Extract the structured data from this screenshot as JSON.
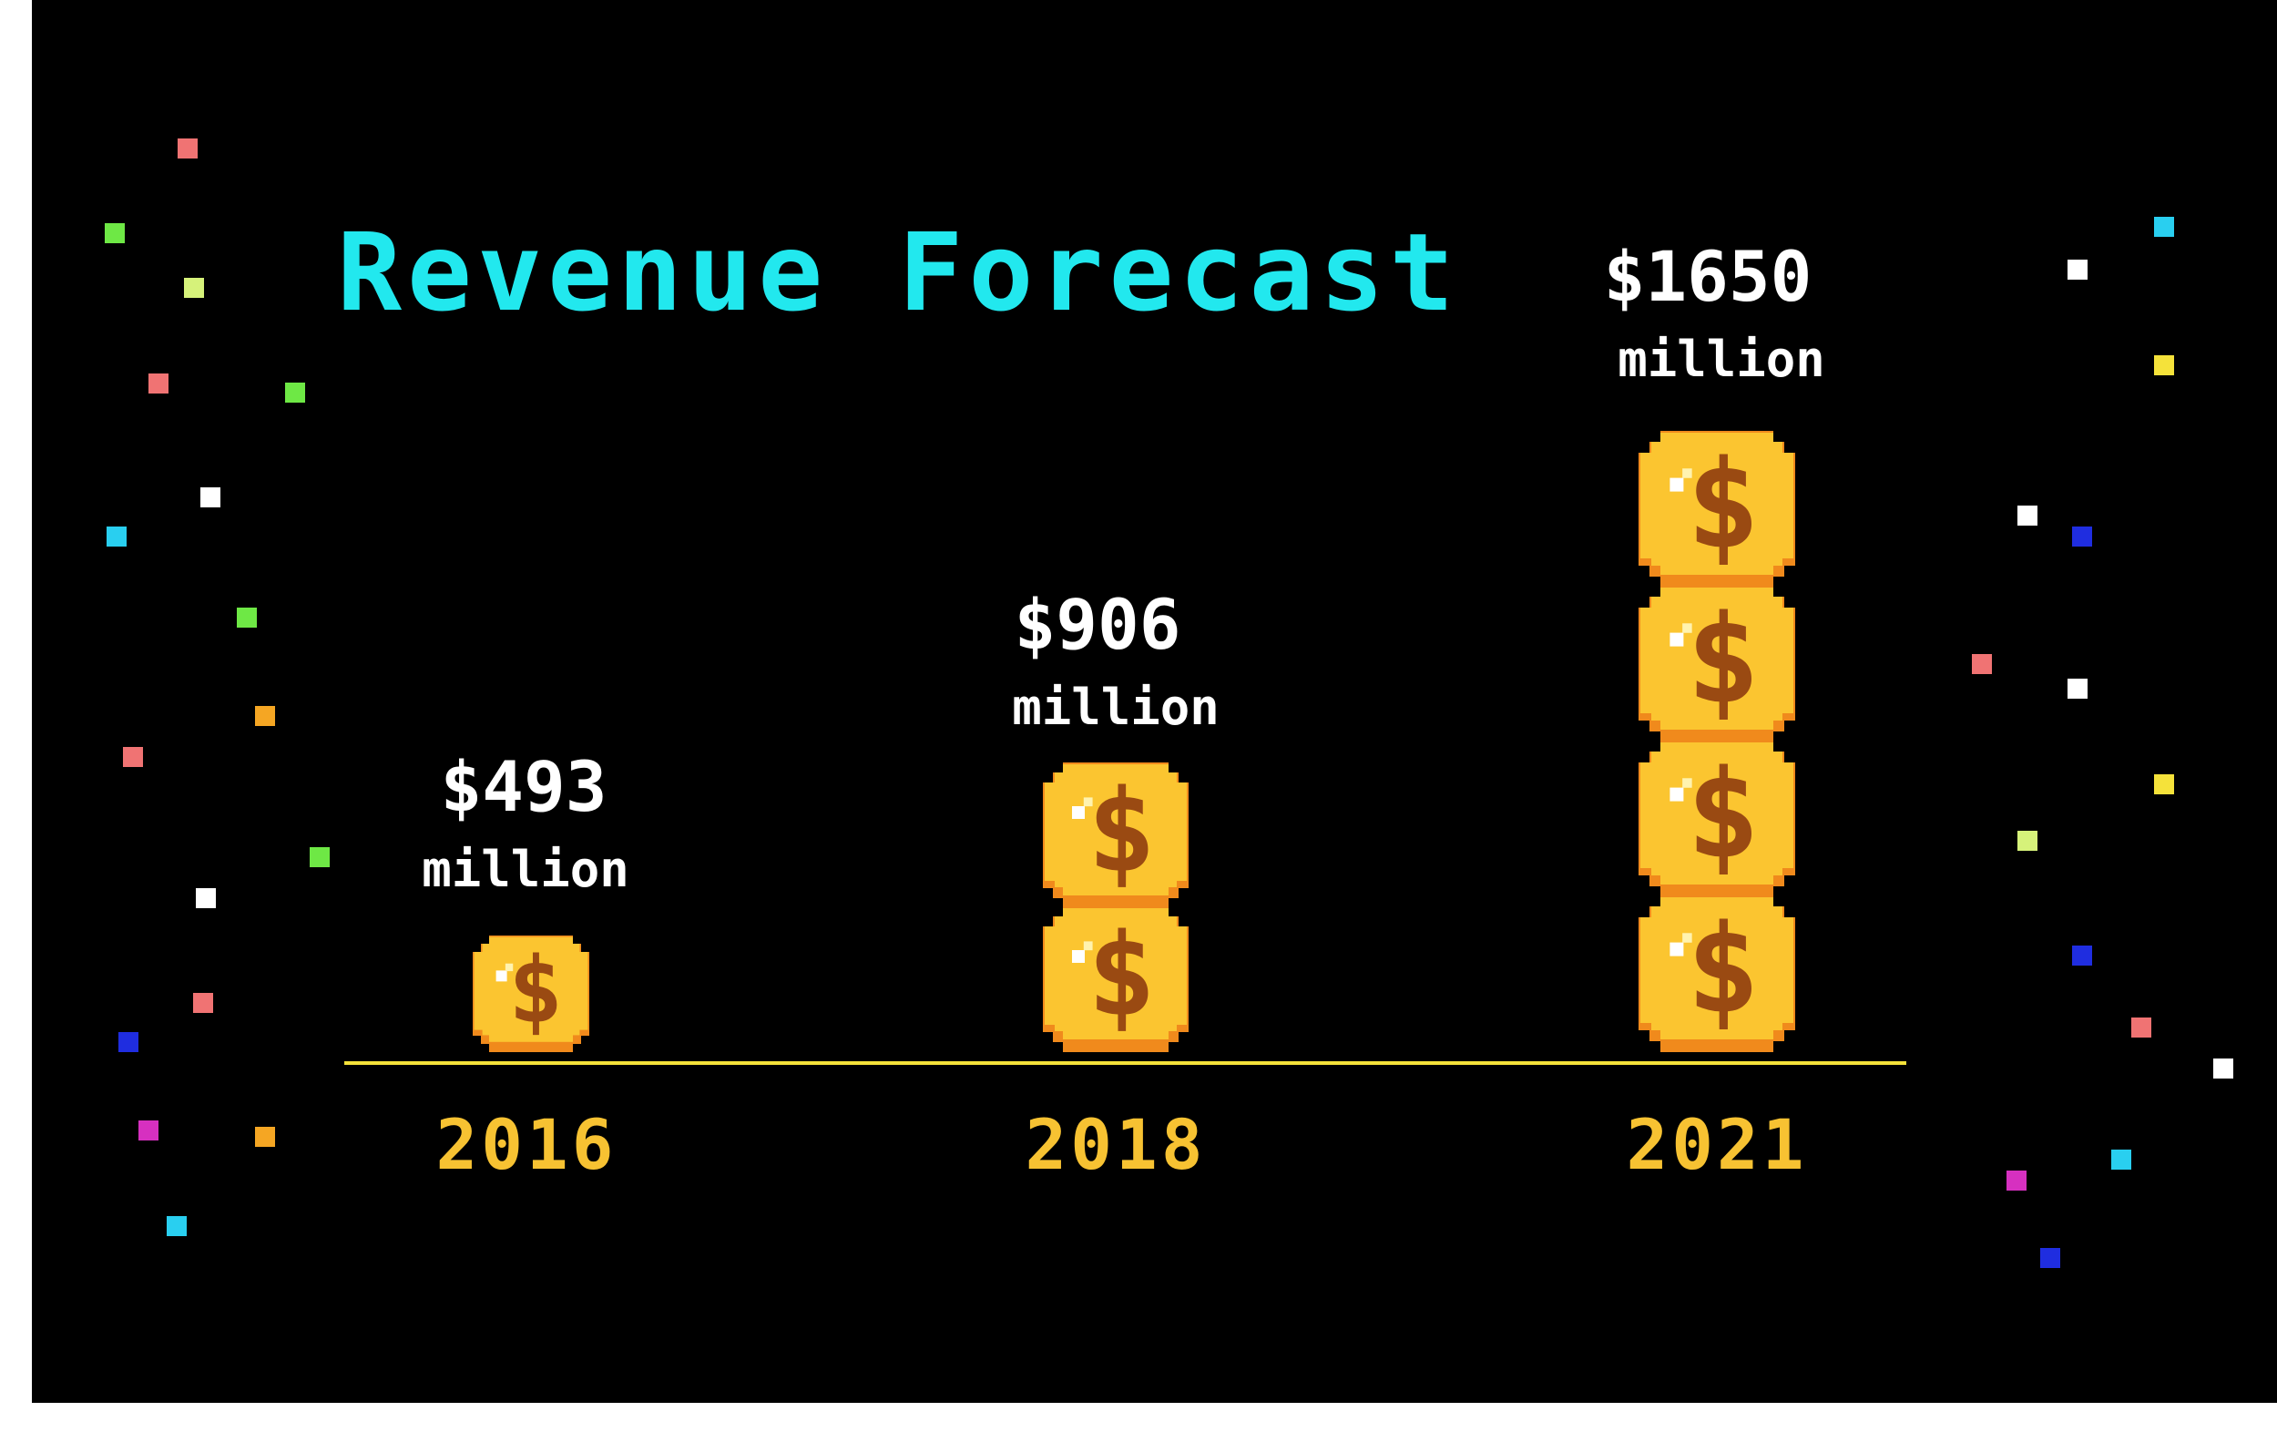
{
  "chart_data": {
    "type": "bar",
    "title": "Revenue Forecast",
    "categories": [
      "2016",
      "2018",
      "2021"
    ],
    "values": [
      493,
      906,
      1650
    ],
    "value_labels": [
      "$493",
      "$906",
      "$1650"
    ],
    "unit_label": "million",
    "coins_per_category": [
      1,
      2,
      4
    ],
    "xlabel": "",
    "ylabel": "",
    "grid": false,
    "legend": "none"
  },
  "colors": {
    "background": "#000000",
    "title": "#22e8ee",
    "value_text": "#ffffff",
    "year_text": "#f7c232",
    "baseline": "#f5e23a",
    "coin_face": "#fbc530",
    "coin_rim": "#f08a1c",
    "coin_symbol": "#9a4a12",
    "confetti": [
      "#f07373",
      "#6ee845",
      "#d6f27a",
      "#ffffff",
      "#29cff0",
      "#f5a623",
      "#1f2de0",
      "#d630c0",
      "#f5e23a"
    ]
  }
}
